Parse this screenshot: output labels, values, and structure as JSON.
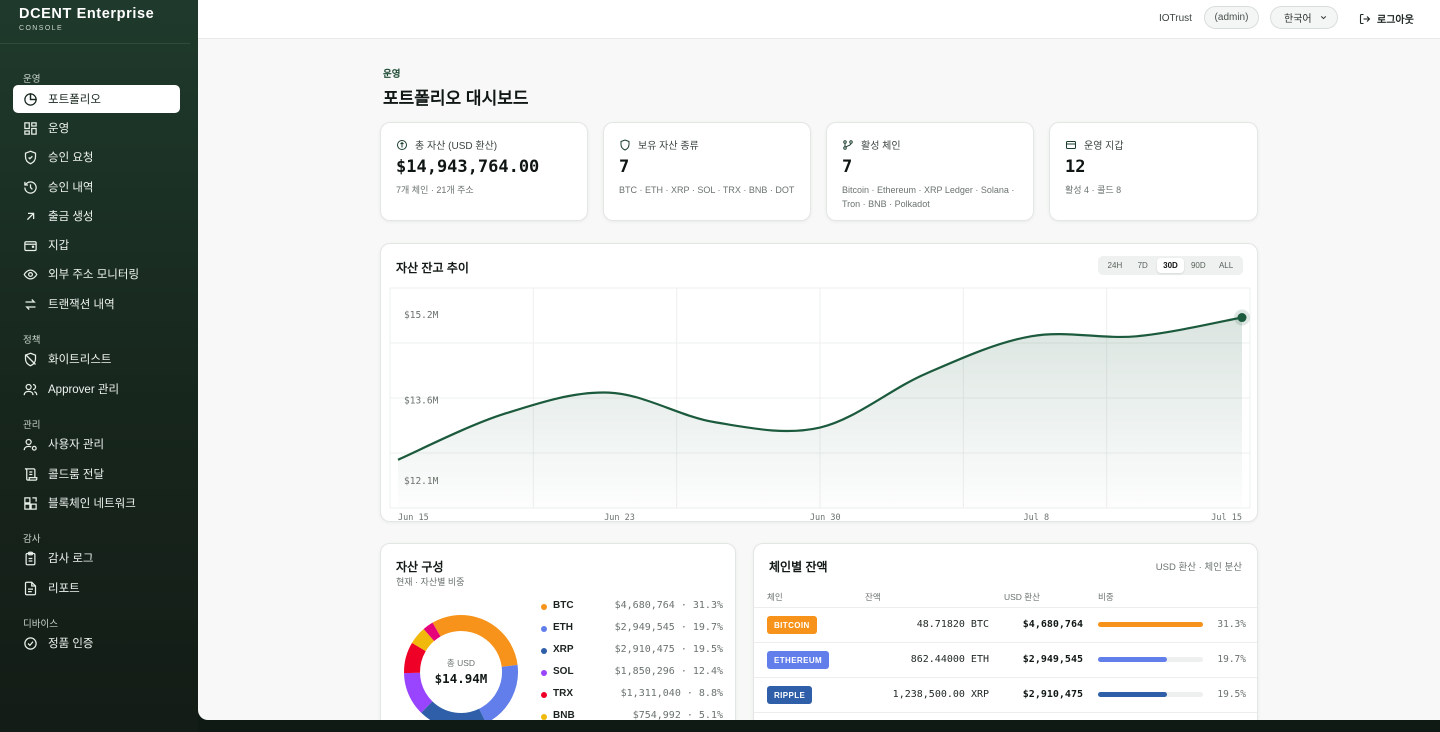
{
  "brand": {
    "title": "DCENT Enterprise",
    "subtitle": "CONSOLE"
  },
  "sidebar": {
    "sections": [
      {
        "label": "운영"
      },
      {
        "label": "정책"
      },
      {
        "label": "관리"
      },
      {
        "label": "감사"
      },
      {
        "label": "디바이스"
      }
    ],
    "items": [
      {
        "label": "포트폴리오",
        "icon": "pie-chart-icon"
      },
      {
        "label": "운영",
        "icon": "grid-icon"
      },
      {
        "label": "승인 요청",
        "icon": "shield-check-icon"
      },
      {
        "label": "승인 내역",
        "icon": "history-icon"
      },
      {
        "label": "출금 생성",
        "icon": "arrow-up-right-icon"
      },
      {
        "label": "지갑",
        "icon": "wallet-icon"
      },
      {
        "label": "외부 주소 모니터링",
        "icon": "eye-icon"
      },
      {
        "label": "트랜잭션 내역",
        "icon": "swap-icon"
      },
      {
        "label": "화이트리스트",
        "icon": "shield-off-icon"
      },
      {
        "label": "Approver 관리",
        "icon": "users-icon"
      },
      {
        "label": "사용자 관리",
        "icon": "user-cog-icon"
      },
      {
        "label": "콜드룸 전달",
        "icon": "scroll-icon"
      },
      {
        "label": "블록체인 네트워크",
        "icon": "blocks-icon"
      },
      {
        "label": "감사 로그",
        "icon": "clipboard-icon"
      },
      {
        "label": "리포트",
        "icon": "file-icon"
      },
      {
        "label": "정품 인증",
        "icon": "check-circle-icon"
      }
    ]
  },
  "topbar": {
    "org": "IOTrust",
    "role": "(admin)",
    "language": "한국어",
    "logout": "로그아웃"
  },
  "page": {
    "breadcrumb": "운영",
    "title": "포트폴리오 대시보드"
  },
  "stats": [
    {
      "label": "총 자산 (USD 환산)",
      "value": "$14,943,764.00",
      "sub": "7개 체인 · 21개 주소",
      "icon": "dollar-circle-icon"
    },
    {
      "label": "보유 자산 종류",
      "value": "7",
      "sub": "BTC · ETH · XRP · SOL · TRX · BNB · DOT",
      "icon": "shield-icon"
    },
    {
      "label": "활성 체인",
      "value": "7",
      "sub": "Bitcoin · Ethereum · XRP Ledger · Solana · Tron · BNB · Polkadot",
      "icon": "git-branch-icon"
    },
    {
      "label": "운영 지갑",
      "value": "12",
      "sub": "활성 4 · 콜드 8",
      "icon": "card-icon"
    }
  ],
  "balance_chart": {
    "title": "자산 잔고 추이",
    "ranges": [
      "24H",
      "7D",
      "30D",
      "90D",
      "ALL"
    ],
    "active_range": "30D"
  },
  "chart_data": {
    "type": "area",
    "x": [
      "Jun 15",
      "Jun 19",
      "Jun 23",
      "Jun 27",
      "Jun 30",
      "Jul 4",
      "Jul 8",
      "Jul 12",
      "Jul 15"
    ],
    "xticks": [
      "Jun 15",
      "Jun 23",
      "Jun 30",
      "Jul 8",
      "Jul 15"
    ],
    "series": [
      {
        "values": [
          12.5,
          13.35,
          13.75,
          13.2,
          13.1,
          14.1,
          14.8,
          14.8,
          15.15
        ]
      }
    ],
    "yticks": [
      "$15.2M",
      "$13.6M",
      "$12.1M"
    ],
    "ylim": [
      11.6,
      15.7
    ],
    "grid": true,
    "color": "#1b5a3c"
  },
  "composition": {
    "title": "자산 구성",
    "subtitle": "현재 · 자산별 비중",
    "center_label": "총 USD",
    "center_value": "$14.94M",
    "assets": [
      {
        "symbol": "BTC",
        "value": "$4,680,764 · 31.3%",
        "pct": 31.3,
        "color": "#f7931a"
      },
      {
        "symbol": "ETH",
        "value": "$2,949,545 · 19.7%",
        "pct": 19.7,
        "color": "#627eea"
      },
      {
        "symbol": "XRP",
        "value": "$2,910,475 · 19.5%",
        "pct": 19.5,
        "color": "#2f5fa8"
      },
      {
        "symbol": "SOL",
        "value": "$1,850,296 · 12.4%",
        "pct": 12.4,
        "color": "#9945ff"
      },
      {
        "symbol": "TRX",
        "value": "$1,311,040 · 8.8%",
        "pct": 8.8,
        "color": "#ef0027"
      },
      {
        "symbol": "BNB",
        "value": "$754,992 · 5.1%",
        "pct": 5.1,
        "color": "#f0b90b"
      },
      {
        "pct": 3.2,
        "color": "#e6007a"
      }
    ]
  },
  "chain_balances": {
    "title": "체인별 잔액",
    "note": "USD 환산 · 체인 분산",
    "headers": {
      "chain": "체인",
      "balance": "잔액",
      "usd": "USD 환산",
      "share": "비중"
    },
    "rows": [
      {
        "chain": "BITCOIN",
        "balance": "48.71820 BTC",
        "usd": "$4,680,764",
        "pct_label": "31.3%",
        "pct": 31.3,
        "color": "#f7931a"
      },
      {
        "chain": "ETHEREUM",
        "balance": "862.44000 ETH",
        "usd": "$2,949,545",
        "pct_label": "19.7%",
        "pct": 19.7,
        "color": "#627eea"
      },
      {
        "chain": "RIPPLE",
        "balance": "1,238,500.00 XRP",
        "usd": "$2,910,475",
        "pct_label": "19.5%",
        "pct": 19.5,
        "color": "#2f5fa8"
      }
    ]
  }
}
